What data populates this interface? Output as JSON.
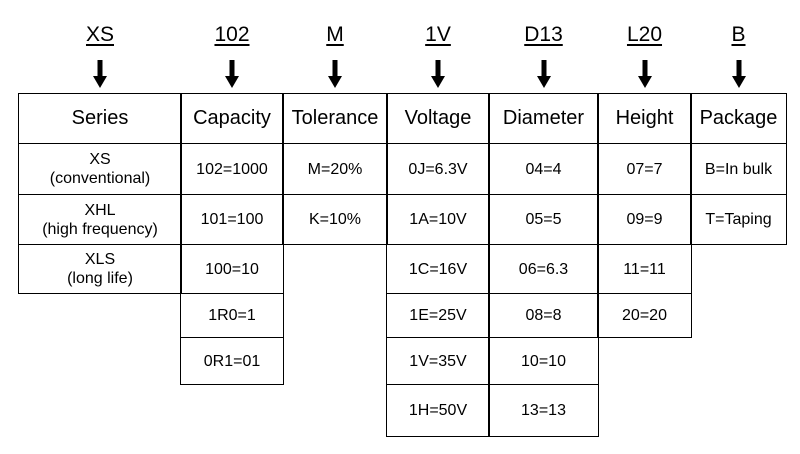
{
  "columns": [
    {
      "code": "XS",
      "header": "Series",
      "values": [
        [
          "XS",
          "(conventional)"
        ],
        [
          "XHL",
          "(high frequency)"
        ],
        [
          "XLS",
          "(long life)"
        ]
      ]
    },
    {
      "code": "102",
      "header": "Capacity",
      "values": [
        [
          "102=1000"
        ],
        [
          "101=100"
        ],
        [
          "100=10"
        ],
        [
          "1R0=1"
        ],
        [
          "0R1=01"
        ]
      ]
    },
    {
      "code": "M",
      "header": "Tolerance",
      "values": [
        [
          "M=20%"
        ],
        [
          "K=10%"
        ]
      ]
    },
    {
      "code": "1V",
      "header": "Voltage",
      "values": [
        [
          "0J=6.3V"
        ],
        [
          "1A=10V"
        ],
        [
          "1C=16V"
        ],
        [
          "1E=25V"
        ],
        [
          "1V=35V"
        ],
        [
          "1H=50V"
        ]
      ]
    },
    {
      "code": "D13",
      "header": "Diameter",
      "values": [
        [
          "04=4"
        ],
        [
          "05=5"
        ],
        [
          "06=6.3"
        ],
        [
          "08=8"
        ],
        [
          "10=10"
        ],
        [
          "13=13"
        ]
      ]
    },
    {
      "code": "L20",
      "header": "Height",
      "values": [
        [
          "07=7"
        ],
        [
          "09=9"
        ],
        [
          "11=11"
        ],
        [
          "20=20"
        ]
      ]
    },
    {
      "code": "B",
      "header": "Package",
      "values": [
        [
          "B=In bulk"
        ],
        [
          "T=Taping"
        ]
      ]
    }
  ]
}
